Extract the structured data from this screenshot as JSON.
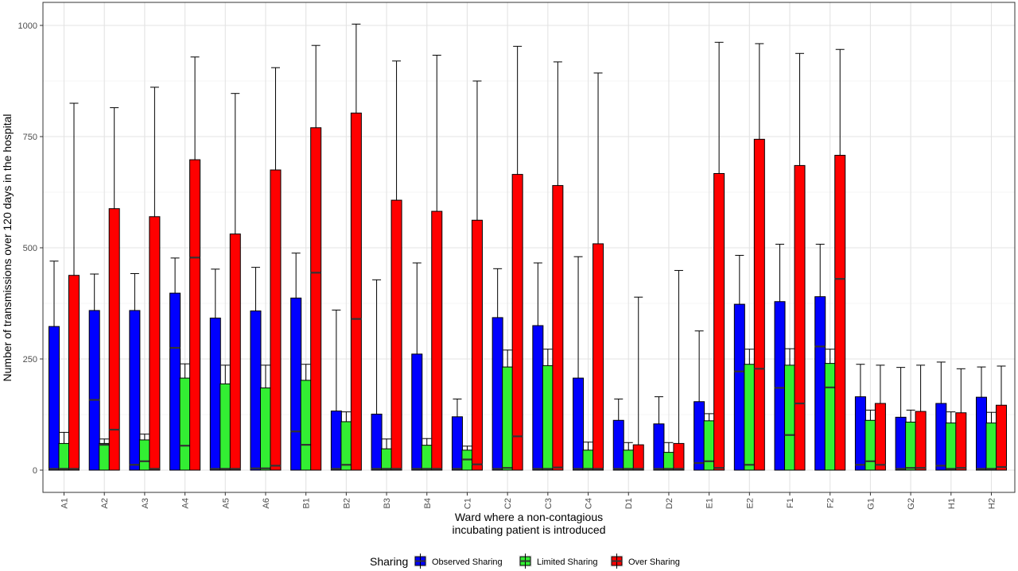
{
  "chart_data": {
    "type": "bar",
    "xlabel_lines": [
      "Ward where a non-contagious",
      "incubating patient is introduced"
    ],
    "ylabel": "Number of transmissions over 120 days in the hospital",
    "ylim": [
      0,
      1050
    ],
    "yticks": [
      0,
      250,
      500,
      750,
      1000
    ],
    "grid": true,
    "legend": {
      "title": "Sharing",
      "position": "bottom"
    },
    "categories": [
      "A1",
      "A2",
      "A3",
      "A4",
      "A5",
      "A6",
      "B1",
      "B2",
      "B3",
      "B4",
      "C1",
      "C2",
      "C3",
      "C4",
      "D1",
      "D2",
      "E1",
      "E2",
      "F1",
      "F2",
      "G1",
      "G2",
      "H1",
      "H2"
    ],
    "series": [
      {
        "name": "Observed Sharing",
        "color": "#0000ff",
        "values": [
          323,
          359,
          359,
          398,
          342,
          358,
          387,
          133,
          126,
          261,
          120,
          343,
          325,
          207,
          112,
          104,
          154,
          373,
          379,
          390,
          165,
          119,
          150,
          164
        ],
        "error_upper": [
          470,
          441,
          442,
          477,
          452,
          456,
          488,
          360,
          428,
          466,
          160,
          453,
          466,
          480,
          160,
          165,
          313,
          483,
          508,
          508,
          238,
          231,
          243,
          232
        ],
        "median": [
          3,
          158,
          12,
          275,
          3,
          4,
          87,
          3,
          3,
          3,
          3,
          3,
          3,
          3,
          3,
          3,
          16,
          222,
          185,
          278,
          12,
          3,
          10,
          3
        ]
      },
      {
        "name": "Limited Sharing",
        "color": "#33ee33",
        "values": [
          60,
          60,
          68,
          207,
          194,
          185,
          202,
          109,
          48,
          56,
          45,
          232,
          235,
          45,
          45,
          40,
          111,
          238,
          236,
          240,
          112,
          108,
          106,
          106
        ],
        "error_upper": [
          85,
          70,
          81,
          239,
          236,
          236,
          238,
          131,
          70,
          71,
          54,
          270,
          272,
          63,
          62,
          62,
          127,
          272,
          273,
          272,
          135,
          135,
          131,
          130
        ],
        "median": [
          3,
          57,
          20,
          55,
          3,
          4,
          57,
          12,
          3,
          3,
          24,
          5,
          3,
          3,
          3,
          3,
          20,
          12,
          79,
          186,
          20,
          5,
          3,
          3
        ]
      },
      {
        "name": "Over Sharing",
        "color": "#ff0000",
        "values": [
          438,
          588,
          570,
          698,
          531,
          675,
          770,
          803,
          607,
          582,
          562,
          665,
          640,
          509,
          57,
          60,
          667,
          744,
          685,
          708,
          150,
          132,
          129,
          146
        ],
        "error_upper": [
          825,
          815,
          861,
          929,
          847,
          905,
          955,
          1003,
          920,
          933,
          875,
          953,
          918,
          893,
          389,
          449,
          962,
          959,
          937,
          946,
          236,
          236,
          228,
          234
        ],
        "median": [
          3,
          91,
          3,
          478,
          3,
          10,
          444,
          340,
          3,
          3,
          13,
          76,
          6,
          3,
          3,
          3,
          5,
          228,
          150,
          430,
          12,
          5,
          5,
          7
        ]
      }
    ]
  }
}
